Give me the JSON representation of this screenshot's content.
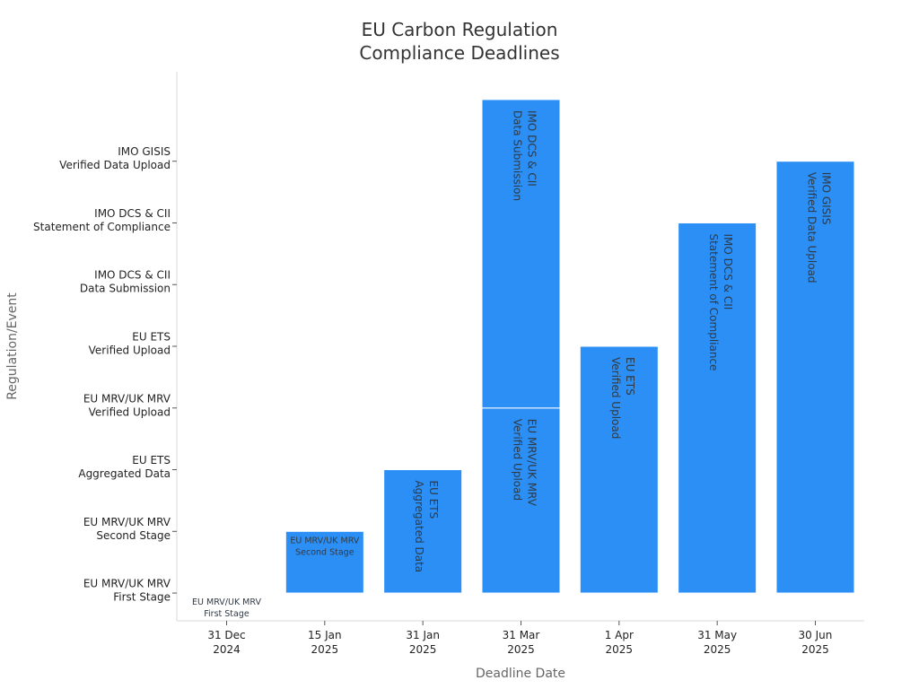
{
  "chart_data": {
    "type": "bar",
    "title": [
      "EU Carbon Regulation",
      "Compliance Deadlines"
    ],
    "xlabel": "Deadline Date",
    "ylabel": "Regulation/Event",
    "categories": [
      [
        "31 Dec",
        "2024"
      ],
      [
        "15 Jan",
        "2025"
      ],
      [
        "31 Jan",
        "2025"
      ],
      [
        "31 Mar",
        "2025"
      ],
      [
        "1 Apr",
        "2025"
      ],
      [
        "31 May",
        "2025"
      ],
      [
        "30 Jun",
        "2025"
      ]
    ],
    "y_categories": [
      [
        "EU MRV/UK MRV",
        "First Stage"
      ],
      [
        "EU MRV/UK MRV",
        "Second Stage"
      ],
      [
        "EU ETS",
        "Aggregated Data"
      ],
      [
        "EU MRV/UK MRV",
        "Verified Upload"
      ],
      [
        "EU ETS",
        "Verified Upload"
      ],
      [
        "IMO DCS & CII",
        "Data Submission"
      ],
      [
        "IMO DCS & CII",
        "Statement of Compliance"
      ],
      [
        "IMO GISIS",
        "Verified Data Upload"
      ]
    ],
    "y_range": [
      -0.45,
      8.45
    ],
    "grid": false,
    "bars": [
      {
        "x": 0,
        "top": 0,
        "label": [
          "EU MRV/UK MRV",
          "First Stage"
        ],
        "label_style": "horizontal"
      },
      {
        "x": 1,
        "top": 1,
        "label": [
          "EU MRV/UK MRV",
          "Second Stage"
        ],
        "label_style": "horizontal"
      },
      {
        "x": 2,
        "top": 2,
        "label": [
          "EU ETS",
          "Aggregated Data"
        ],
        "label_style": "vertical"
      },
      {
        "x": 3,
        "top": 3,
        "label": [
          "EU MRV/UK MRV",
          "Verified Upload"
        ],
        "label_style": "vertical"
      },
      {
        "x": 3,
        "top": 8,
        "bottom": 3,
        "label": [
          "IMO DCS & CII",
          "Data Submission"
        ],
        "label_style": "vertical"
      },
      {
        "x": 4,
        "top": 4,
        "label": [
          "EU ETS",
          "Verified Upload"
        ],
        "label_style": "vertical"
      },
      {
        "x": 5,
        "top": 6,
        "label": [
          "IMO DCS & CII",
          "Statement of Compliance"
        ],
        "label_style": "vertical"
      },
      {
        "x": 6,
        "top": 7,
        "label": [
          "IMO GISIS",
          "Verified Data Upload"
        ],
        "label_style": "vertical"
      }
    ],
    "colors": {
      "bar": "#2b8ff5",
      "bar_edge": "#ffffff",
      "axis": "#d9d9d9",
      "tick_mark": "#555555"
    }
  }
}
